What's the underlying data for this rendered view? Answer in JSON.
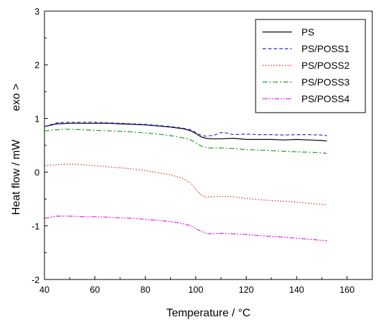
{
  "chart_data": {
    "type": "line",
    "title": "",
    "xlabel": "Temperature / °C",
    "ylabel": "Heat flow / mW",
    "ylabel_annotation": "exo >",
    "xlim": [
      40,
      170
    ],
    "ylim": [
      -2,
      3
    ],
    "xticks": [
      "40",
      "60",
      "80",
      "100",
      "120",
      "140",
      "160"
    ],
    "yticks": [
      "-2",
      "-1",
      "0",
      "1",
      "2",
      "3"
    ],
    "grid": false,
    "legend_position": "top-right",
    "series": [
      {
        "name": "PS",
        "color": "#000000",
        "dash": "solid",
        "x": [
          40,
          45,
          50,
          55,
          60,
          65,
          70,
          75,
          80,
          85,
          90,
          95,
          98,
          100,
          102,
          104,
          106,
          110,
          115,
          120,
          125,
          130,
          135,
          140,
          145,
          150,
          152
        ],
        "y": [
          0.85,
          0.9,
          0.91,
          0.91,
          0.91,
          0.91,
          0.9,
          0.89,
          0.88,
          0.86,
          0.84,
          0.81,
          0.77,
          0.72,
          0.66,
          0.63,
          0.62,
          0.62,
          0.63,
          0.61,
          0.61,
          0.61,
          0.6,
          0.61,
          0.6,
          0.59,
          0.58
        ]
      },
      {
        "name": "PS/POSS1",
        "color": "#2b2be0",
        "dash": "dashed",
        "x": [
          40,
          45,
          50,
          55,
          60,
          65,
          70,
          75,
          80,
          85,
          90,
          95,
          98,
          100,
          102,
          104,
          106,
          108,
          110,
          112,
          115,
          120,
          125,
          130,
          135,
          140,
          145,
          150,
          152
        ],
        "y": [
          0.85,
          0.92,
          0.93,
          0.93,
          0.93,
          0.92,
          0.91,
          0.9,
          0.89,
          0.87,
          0.85,
          0.82,
          0.79,
          0.74,
          0.69,
          0.67,
          0.68,
          0.7,
          0.74,
          0.73,
          0.7,
          0.71,
          0.7,
          0.7,
          0.69,
          0.7,
          0.7,
          0.69,
          0.68
        ]
      },
      {
        "name": "PS/POSS2",
        "color": "#e02020",
        "dash": "dotted",
        "x": [
          40,
          45,
          50,
          55,
          60,
          65,
          70,
          75,
          80,
          85,
          90,
          95,
          98,
          100,
          102,
          104,
          106,
          110,
          115,
          120,
          125,
          130,
          135,
          140,
          145,
          150,
          152
        ],
        "y": [
          0.12,
          0.14,
          0.15,
          0.14,
          0.12,
          0.1,
          0.08,
          0.06,
          0.03,
          -0.01,
          -0.05,
          -0.12,
          -0.2,
          -0.32,
          -0.42,
          -0.47,
          -0.46,
          -0.45,
          -0.46,
          -0.49,
          -0.51,
          -0.53,
          -0.54,
          -0.56,
          -0.58,
          -0.6,
          -0.61
        ]
      },
      {
        "name": "PS/POSS3",
        "color": "#1e9a1e",
        "dash": "dashdot",
        "x": [
          40,
          45,
          50,
          55,
          60,
          65,
          70,
          75,
          80,
          85,
          90,
          95,
          98,
          100,
          102,
          104,
          106,
          110,
          115,
          120,
          125,
          130,
          135,
          140,
          145,
          150,
          152
        ],
        "y": [
          0.77,
          0.79,
          0.8,
          0.79,
          0.78,
          0.77,
          0.76,
          0.75,
          0.73,
          0.71,
          0.68,
          0.64,
          0.6,
          0.55,
          0.49,
          0.46,
          0.45,
          0.45,
          0.44,
          0.42,
          0.41,
          0.4,
          0.39,
          0.38,
          0.37,
          0.36,
          0.35
        ]
      },
      {
        "name": "PS/POSS4",
        "color": "#e020e0",
        "dash": "dashdotdot",
        "x": [
          40,
          45,
          50,
          55,
          60,
          65,
          70,
          75,
          80,
          85,
          90,
          95,
          98,
          100,
          102,
          104,
          106,
          110,
          115,
          120,
          125,
          130,
          135,
          140,
          145,
          150,
          152
        ],
        "y": [
          -0.86,
          -0.82,
          -0.82,
          -0.83,
          -0.83,
          -0.84,
          -0.85,
          -0.86,
          -0.88,
          -0.9,
          -0.92,
          -0.96,
          -1.0,
          -1.05,
          -1.1,
          -1.14,
          -1.15,
          -1.14,
          -1.15,
          -1.16,
          -1.18,
          -1.2,
          -1.21,
          -1.23,
          -1.25,
          -1.27,
          -1.28
        ]
      }
    ]
  }
}
